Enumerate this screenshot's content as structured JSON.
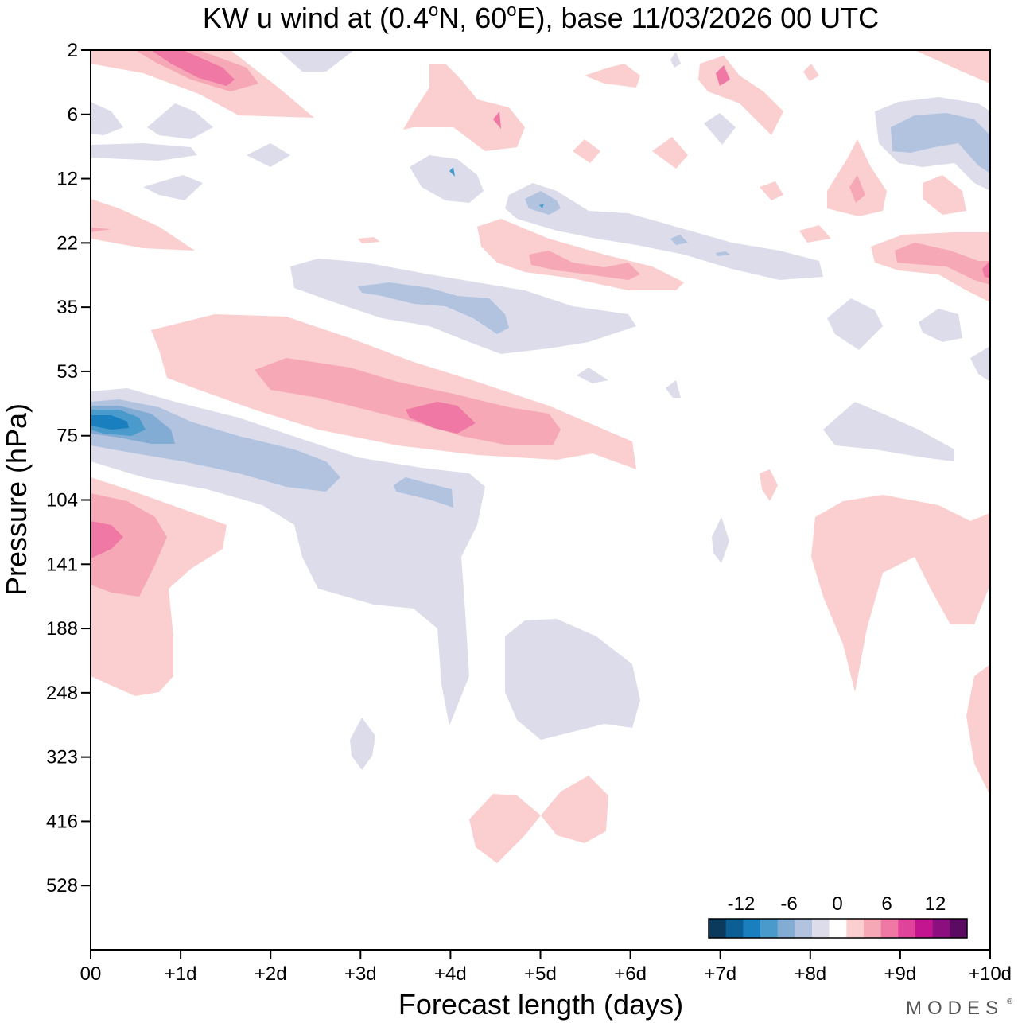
{
  "chart_data": {
    "type": "contour",
    "title_prefix": "KW u wind at (0.4",
    "title_mid": "N, 60",
    "title_suffix": "E),  base 11/03/2026  00 UTC",
    "degree_symbol": "o",
    "xlabel": "Forecast length (days)",
    "ylabel": "Pressure (hPa)",
    "x_range_days": [
      0,
      10
    ],
    "x_ticks": [
      {
        "value": 0,
        "label": "00"
      },
      {
        "value": 1,
        "label": "+1d"
      },
      {
        "value": 2,
        "label": "+2d"
      },
      {
        "value": 3,
        "label": "+3d"
      },
      {
        "value": 4,
        "label": "+4d"
      },
      {
        "value": 5,
        "label": "+5d"
      },
      {
        "value": 6,
        "label": "+6d"
      },
      {
        "value": 7,
        "label": "+7d"
      },
      {
        "value": 8,
        "label": "+8d"
      },
      {
        "value": 9,
        "label": "+9d"
      },
      {
        "value": 10,
        "label": "+10d"
      }
    ],
    "y_ticks": [
      "2",
      "6",
      "12",
      "22",
      "35",
      "53",
      "75",
      "104",
      "141",
      "188",
      "248",
      "323",
      "416",
      "528"
    ],
    "colorbar": {
      "levels": [
        -14,
        -12,
        -10,
        -8,
        -6,
        -4,
        -2,
        2,
        4,
        6,
        8,
        10,
        12,
        14
      ],
      "labels": [
        "-12",
        "-6",
        "0",
        "6",
        "12"
      ],
      "colors": [
        "#0b3a5c",
        "#0b5f95",
        "#1a7fbf",
        "#4a9bcb",
        "#82acd4",
        "#b2c3e0",
        "#dcdceb",
        "#ffffff",
        "#fbcfcf",
        "#f6a8b6",
        "#f078a4",
        "#e0449a",
        "#c2158f",
        "#8b0f7e",
        "#5c0b63"
      ]
    },
    "contours": [
      {
        "level": 2,
        "color": "#fbcfcf",
        "regions": [
          "stratosphere 2hPa 0-2.5d",
          "10-20hPa 0-1.2d",
          "35-75hPa 0.8-6d",
          "90-250hPa 0-1.5d",
          "4-12hPa 3.5-4.7d",
          "15-30hPa 4.3-6.5d",
          "2-10hPa 6.5-8d",
          "8-20hPa 8.3-9.5d",
          "20-40hPa 8.8-10d",
          "90-250hPa 8-10d",
          "300-420hPa 4.2-5.7d"
        ]
      },
      {
        "level": 4,
        "color": "#f6a8b6",
        "regions": [
          "2-4hPa 0.5-1.8d",
          "53-75hPa 1.8-5.2d",
          "90-145hPa 0-0.8d",
          "18-30hPa 4.8-6.1d",
          "20-30hPa 9.0-10d"
        ]
      },
      {
        "level": 6,
        "color": "#f078a4",
        "regions": [
          "2-4hPa 0.8-1.6d",
          "60-70hPa 3.7-4.3d",
          "100-120hPa 0-0.3d"
        ]
      },
      {
        "level": -2,
        "color": "#dcdceb",
        "regions": [
          "55-90hPa 0-4.5d",
          "85-250hPa 2.3-4.3d",
          "25-40hPa 2.2-6.1d",
          "12-25hPa 4.7-8.1d",
          "180-280hPa 4.7-6.1d",
          "5-12hPa 8.9-10d",
          "60-80hPa 8.1-9.5d"
        ]
      },
      {
        "level": -4,
        "color": "#b2c3e0",
        "regions": [
          "58-90hPa 0-2.8d",
          "28-40hPa 3.0-4.6d",
          "5-10hPa 9.0-10d"
        ]
      },
      {
        "level": -6,
        "color": "#82acd4",
        "regions": [
          "60-75hPa 0-0.9d"
        ]
      },
      {
        "level": -8,
        "color": "#4a9bcb",
        "regions": [
          "62-70hPa 0-0.6d"
        ]
      }
    ],
    "brand": "MODES"
  }
}
